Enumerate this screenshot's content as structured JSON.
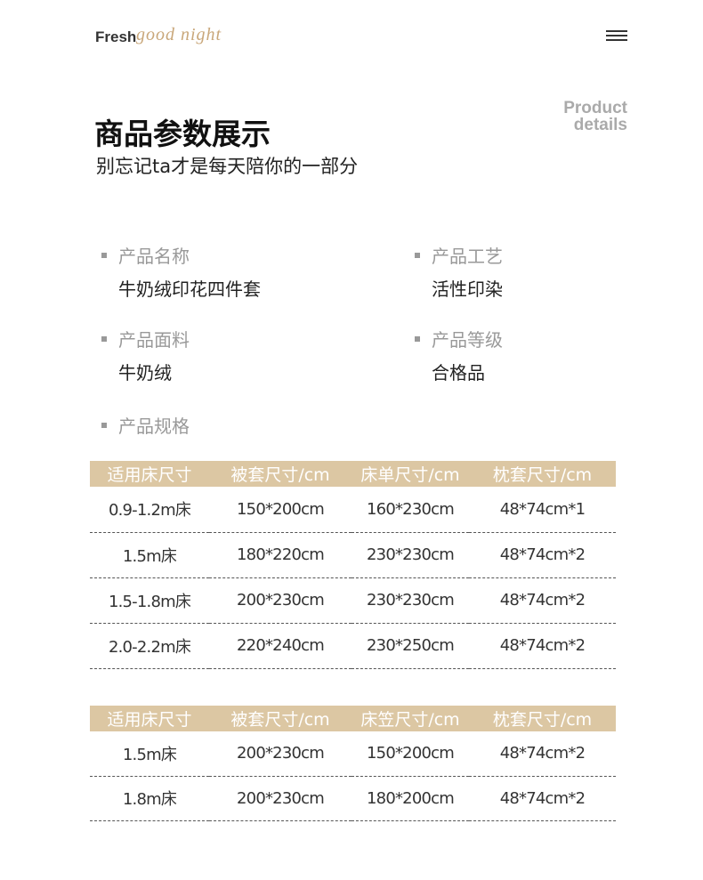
{
  "header": {
    "brand": "Fresh",
    "tagline": "good night"
  },
  "intro": {
    "title": "商品参数展示",
    "subtitle": "别忘记ta才是每天陪你的一部分",
    "badge": [
      "Product",
      "details"
    ]
  },
  "params": [
    {
      "label": "产品名称",
      "value": "牛奶绒印花四件套"
    },
    {
      "label": "产品工艺",
      "value": "活性印染"
    },
    {
      "label": "产品面料",
      "value": "牛奶绒"
    },
    {
      "label": "产品等级",
      "value": "合格品"
    },
    {
      "label": "产品规格"
    }
  ],
  "tables": [
    {
      "columns": [
        "适用床尺寸",
        "被套尺寸/cm",
        "床单尺寸/cm",
        "枕套尺寸/cm"
      ],
      "rows": [
        [
          "0.9-1.2m床",
          "150*200cm",
          "160*230cm",
          "48*74cm*1"
        ],
        [
          "1.5m床",
          "180*220cm",
          "230*230cm",
          "48*74cm*2"
        ],
        [
          "1.5-1.8m床",
          "200*230cm",
          "230*230cm",
          "48*74cm*2"
        ],
        [
          "2.0-2.2m床",
          "220*240cm",
          "230*250cm",
          "48*74cm*2"
        ]
      ]
    },
    {
      "columns": [
        "适用床尺寸",
        "被套尺寸/cm",
        "床笠尺寸/cm",
        "枕套尺寸/cm"
      ],
      "rows": [
        [
          "1.5m床",
          "200*230cm",
          "150*200cm",
          "48*74cm*2"
        ],
        [
          "1.8m床",
          "200*230cm",
          "180*200cm",
          "48*74cm*2"
        ]
      ]
    }
  ]
}
